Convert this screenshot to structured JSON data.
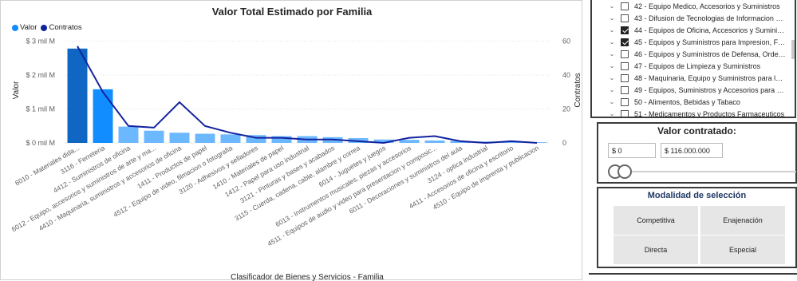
{
  "chart": {
    "title": "Valor Total Estimado por Familia",
    "legend": [
      {
        "name": "Valor",
        "color": "#118DFF"
      },
      {
        "name": "Contratos",
        "color": "#12239E"
      }
    ],
    "ylabel_left": "Valor",
    "ylabel_right": "Contratos",
    "xlabel": "Clasificador de Bienes y Servicios - Familia"
  },
  "chart_data": {
    "type": "bar",
    "title": "Valor Total Estimado por Familia",
    "xlabel": "Clasificador de Bienes y Servicios - Familia",
    "ylabel": "Valor",
    "y2label": "Contratos",
    "y_ticks": [
      "$ 0 mil M",
      "$ 1 mil M",
      "$ 2 mil M",
      "$ 3 mil M"
    ],
    "y_tick_values": [
      0,
      1,
      2,
      3
    ],
    "y2_ticks": [
      "0",
      "20",
      "40",
      "60"
    ],
    "y2_tick_values": [
      0,
      20,
      40,
      60
    ],
    "ylim": [
      0,
      3.2
    ],
    "y2lim": [
      0,
      64
    ],
    "categories": [
      "6010 - Materiales dida...",
      "3116 - Ferreteria",
      "4412 - Suministros de oficina",
      "6012 - Equipo, accesorios y suministros de arte y ma...",
      "4410 - Maquinaria, suministros y accesorios de oficina",
      "1411 - Productos de papel",
      "4512 - Equipo de video, filmacion o fotografia",
      "3120 - Adhesivos y selladores",
      "1410 - Materiales de papel",
      "1412 - Papel para uso industrial",
      "3121 - Pinturas y bases y acabados",
      "3115 - Cuerda, cadena, cable, alambre y correa",
      "6014 - Juguetes y juegos",
      "6013 - Instrumentos musicales, piezas y accesorios",
      "4511 - Equipos de audio y video para presentacion y composic...",
      "6011 - Decoraciones y suministros del aula",
      "3124 - optica industrial",
      "4411 - Accesorios de oficina y escritorio",
      "4510 - Equipo de imprenta y publicacion"
    ],
    "series": [
      {
        "name": "Valor",
        "type": "bar",
        "unit": "mil M",
        "values": [
          2.78,
          1.58,
          0.48,
          0.36,
          0.3,
          0.27,
          0.25,
          0.23,
          0.2,
          0.2,
          0.17,
          0.14,
          0.1,
          0.09,
          0.07,
          0.06,
          0.04,
          0.03,
          0.02
        ]
      },
      {
        "name": "Contratos",
        "type": "line",
        "values": [
          57,
          30,
          10,
          9,
          24,
          10,
          6,
          3,
          3,
          2,
          2,
          1,
          0,
          3,
          4,
          1,
          0,
          1,
          0
        ]
      }
    ],
    "bar_colors": [
      "#0F66C3",
      "#118DFF",
      "#6CB8FF",
      "#6CB8FF",
      "#6CB8FF",
      "#6CB8FF",
      "#6CB8FF",
      "#6CB8FF",
      "#6CB8FF",
      "#6CB8FF",
      "#6CB8FF",
      "#6CB8FF",
      "#6CB8FF",
      "#6CB8FF",
      "#6CB8FF",
      "#6CB8FF",
      "#6CB8FF",
      "#6CB8FF",
      "#6CB8FF"
    ],
    "grid": true
  },
  "family_list": {
    "items": [
      {
        "label": "42 - Equipo Medico, Accesorios y Suministros",
        "checked": false
      },
      {
        "label": "43 - Difusion de Tecnologias de Informacion y ...",
        "checked": false
      },
      {
        "label": "44 - Equipos de Oficina, Accesorios y Suministr...",
        "checked": true
      },
      {
        "label": "45 - Equipos y Suministros para Impresion, Fot...",
        "checked": true
      },
      {
        "label": "46 - Equipos y Suministros de Defensa, Orden ...",
        "checked": false
      },
      {
        "label": "47 - Equipos de Limpieza y Suministros",
        "checked": false
      },
      {
        "label": "48 - Maquinaria, Equipo y Suministros para la I...",
        "checked": false
      },
      {
        "label": "49 - Equipos, Suministros y Accesorios para De...",
        "checked": false
      },
      {
        "label": "50 - Alimentos, Bebidas y Tabaco",
        "checked": false
      },
      {
        "label": "51 - Medicamentos y Productos Farmaceuticos",
        "checked": false
      }
    ]
  },
  "range": {
    "title": "Valor contratado:",
    "min_value": "$ 0",
    "max_value": "$ 116.000.000"
  },
  "modalidad": {
    "title": "Modalidad de selección",
    "options": [
      "Competitiva",
      "Enajenación",
      "Directa",
      "Especial"
    ]
  }
}
